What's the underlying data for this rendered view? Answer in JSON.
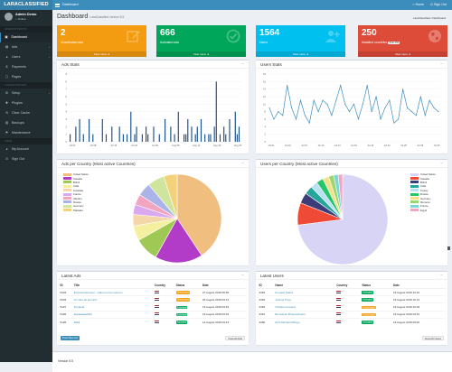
{
  "app": {
    "logo": "LARACLASSIFIED",
    "crumb": "Dashboard",
    "home": "Home",
    "signout": "Sign Out"
  },
  "user": {
    "name": "Admin Demo",
    "status": "Online"
  },
  "sidebar": {
    "section1": "ADMINISTRATION",
    "items1": [
      {
        "icon": "dashboard-icon",
        "glyph": "▣",
        "label": "Dashboard",
        "active": true
      },
      {
        "icon": "ads-icon",
        "glyph": "▤",
        "label": "Ads",
        "caret": true
      },
      {
        "icon": "users-icon",
        "glyph": "●",
        "label": "Users",
        "caret": true
      },
      {
        "icon": "payments-icon",
        "glyph": "$",
        "label": "Payments"
      },
      {
        "icon": "pages-icon",
        "glyph": "▢",
        "label": "Pages"
      }
    ],
    "section2": "CONFIGURATION",
    "items2": [
      {
        "icon": "setup-icon",
        "glyph": "⚙",
        "label": "Setup",
        "caret": true
      },
      {
        "icon": "plugins-icon",
        "glyph": "✚",
        "label": "Plugins"
      },
      {
        "icon": "clear-cache-icon",
        "glyph": "⟲",
        "label": "Clear Cache"
      },
      {
        "icon": "backups-icon",
        "glyph": "▥",
        "label": "Backups"
      },
      {
        "icon": "maintenance-icon",
        "glyph": "⚑",
        "label": "Maintenance"
      }
    ],
    "section3": "USER",
    "items3": [
      {
        "icon": "account-icon",
        "glyph": "●",
        "label": "My Account"
      },
      {
        "icon": "signout-icon",
        "glyph": "⏻",
        "label": "Sign Out"
      }
    ]
  },
  "page": {
    "title": "Dashboard",
    "subtitle": "LaraClassified version 5.5",
    "breadcrumb": "LaraClassified  /  Dashboard"
  },
  "boxes": [
    {
      "value": "2",
      "label": "Unactivated ads",
      "footer": "View more",
      "color": "#f39c12",
      "icon": "edit-icon"
    },
    {
      "value": "666",
      "label": "Activated ads",
      "footer": "View more",
      "color": "#00a65a",
      "icon": "check-circle-icon"
    },
    {
      "value": "1564",
      "label": "Users",
      "footer": "View more",
      "color": "#00c0ef",
      "icon": "user-plus-icon"
    },
    {
      "value": "250",
      "label": "Installed countries",
      "badge": "Total 250",
      "footer": "View more",
      "color": "#dd4b39",
      "icon": "globe-icon"
    }
  ],
  "ads_stats": {
    "title": "Ads Stats"
  },
  "users_stats": {
    "title": "Users Stats"
  },
  "ads_country": {
    "title": "Ads per Country (Most active Countries)"
  },
  "users_country": {
    "title": "Users per Country (Most active Countries)"
  },
  "chart_data": [
    {
      "type": "bar",
      "title": "Ads Stats",
      "ylim": [
        0,
        9
      ],
      "yticks": [
        0,
        1,
        2,
        3,
        4,
        5,
        6,
        7,
        8,
        9
      ],
      "xticks": [
        "Jul 01",
        "Jul 08",
        "Jul 15",
        "Jul 22",
        "Jul 29",
        "Aug 05",
        "Aug 12",
        "Aug 19",
        "Aug 26"
      ],
      "values": [
        1,
        0,
        0,
        2,
        0,
        3,
        0,
        1,
        0,
        0,
        3,
        0,
        1,
        0,
        0,
        0,
        0,
        3,
        0,
        1,
        0,
        0,
        2,
        0,
        0,
        0,
        2,
        0,
        1,
        0,
        1,
        0,
        4,
        0,
        1,
        2,
        0,
        0,
        1,
        0,
        2,
        1,
        0,
        0,
        2,
        0,
        0,
        1,
        0,
        0,
        3,
        0,
        0,
        2,
        0,
        1,
        0,
        4,
        0,
        0,
        1,
        1,
        3,
        0,
        2,
        0,
        1,
        2,
        0,
        3,
        0,
        1,
        0,
        1,
        1,
        0,
        2,
        8,
        0,
        1,
        0,
        2,
        1,
        0,
        3,
        0,
        0,
        4,
        1,
        2
      ],
      "color": "#1a4f8b",
      "grid": true
    },
    {
      "type": "line",
      "title": "Users Stats",
      "ylim": [
        0,
        18
      ],
      "yticks": [
        0,
        2,
        4,
        6,
        8,
        10,
        12,
        14,
        16,
        18
      ],
      "xticks": [
        "Jul 01",
        "Jul 04",
        "Jul 07",
        "Jul 10",
        "Jul 13",
        "Jul 16",
        "Jul 19",
        "Jul 22",
        "Jul 25",
        "Jul 28",
        "Jul 30"
      ],
      "values": [
        9,
        6,
        8,
        7,
        15,
        9,
        6,
        11,
        7,
        5,
        11,
        8,
        11,
        10,
        7,
        11,
        15,
        10,
        8,
        10,
        6,
        10,
        15,
        8,
        12,
        6,
        9,
        11,
        5,
        6,
        14,
        9,
        8,
        7,
        12,
        7,
        11,
        9,
        8
      ],
      "color": "#3c8dbc",
      "grid": true
    },
    {
      "type": "pie",
      "title": "Ads per Country (Most active Countries)",
      "legend": "top-left",
      "slices": [
        {
          "name": "United States",
          "value": 40.7,
          "color": "#f0bf7f"
        },
        {
          "name": "Canada",
          "value": 17.4,
          "color": "#b23cc8"
        },
        {
          "name": "Brazil",
          "value": 8.7,
          "color": "#9fc854"
        },
        {
          "name": "India",
          "value": 5.5,
          "color": "#f4f0a0"
        },
        {
          "name": "Australia",
          "value": 4.2,
          "color": "#f5d6a8"
        },
        {
          "name": "France",
          "value": 3.6,
          "color": "#d9a8ef"
        },
        {
          "name": "Ukraine",
          "value": 3.9,
          "color": "#f2a5c0"
        },
        {
          "name": "Russia",
          "value": 4.9,
          "color": "#aab4e8"
        },
        {
          "name": "Germany",
          "value": 6.2,
          "color": "#cfe59e"
        },
        {
          "name": "Pakistan",
          "value": 4.9,
          "color": "#f3d27a"
        }
      ]
    },
    {
      "type": "pie",
      "title": "Users per Country (Most active Countries)",
      "legend": "top-right",
      "slices": [
        {
          "name": "United States",
          "value": 73,
          "color": "#d8d4f5"
        },
        {
          "name": "Canada",
          "value": 8,
          "color": "#ee4a35"
        },
        {
          "name": "Brazil",
          "value": 3.8,
          "color": "#3c3c7a"
        },
        {
          "name": "India",
          "value": 3,
          "color": "#26a69a"
        },
        {
          "name": "Turkey",
          "value": 2.5,
          "color": "#b9e0f3"
        },
        {
          "name": "Russia",
          "value": 2.5,
          "color": "#27c56b"
        },
        {
          "name": "Germany",
          "value": 2.2,
          "color": "#f4e08a"
        },
        {
          "name": "Morocco",
          "value": 1.8,
          "color": "#9bd66e"
        },
        {
          "name": "France",
          "value": 1.6,
          "color": "#7bd6d6"
        },
        {
          "name": "Egypt",
          "value": 1.6,
          "color": "#f0a6c5"
        }
      ]
    }
  ],
  "latest_ads": {
    "title": "Latest Ads",
    "headers": [
      "ID",
      "Title",
      "Country",
      "Status",
      "Date"
    ],
    "rows": [
      {
        "id": "5434",
        "title": "Empresa Eireneo – Allen tool ten warren",
        "status": "Unactivated",
        "scolor": "#f39c12",
        "date": "27 August 2018 05:50"
      },
      {
        "id": "5433",
        "title": "Un vélo de anuncio",
        "status": "Unactivated",
        "scolor": "#f39c12",
        "date": "26 August 2018 03:13"
      },
      {
        "id": "5427",
        "title": "Furlands",
        "status": "Activated",
        "scolor": "#00a65a",
        "date": "16 August 2018 03:53"
      },
      {
        "id": "5426",
        "title": "aaaaaaaaa#44",
        "status": "Activated",
        "scolor": "#00a65a",
        "date": "16 August 2018 03:32"
      },
      {
        "id": "5425",
        "title": "klkkjl",
        "status": "Activated",
        "scolor": "#00a65a",
        "date": "14 August 2018 03:13"
      }
    ],
    "post_btn": "Post New Ad",
    "view_btn": "View All Ads"
  },
  "latest_users": {
    "title": "Latest Users",
    "headers": [
      "ID",
      "Name",
      "Country",
      "Status",
      "Date"
    ],
    "rows": [
      {
        "id": "2364",
        "name": "Kouassi Diarra",
        "status": "Activated",
        "scolor": "#00a65a",
        "date": "16 August 2018 10:24"
      },
      {
        "id": "2363",
        "name": "Joshua Pope",
        "status": "Activated",
        "scolor": "#00a65a",
        "date": "16 August 2018 10:14"
      },
      {
        "id": "2362",
        "name": "Christie Crossett",
        "status": "Unactivated",
        "scolor": "#f39c12",
        "date": "16 August 2018 10:03"
      },
      {
        "id": "2361",
        "name": "Benedetto Brisposchierro",
        "status": "Unactivated",
        "scolor": "#f39c12",
        "date": "16 August 2018 09:51"
      },
      {
        "id": "2360",
        "name": "Emil Michael Mbugu",
        "status": "Activated",
        "scolor": "#00a65a",
        "date": "16 August 2018 09:40"
      }
    ],
    "view_btn": "View All Users"
  },
  "footer": {
    "version": "Version 5.5"
  }
}
